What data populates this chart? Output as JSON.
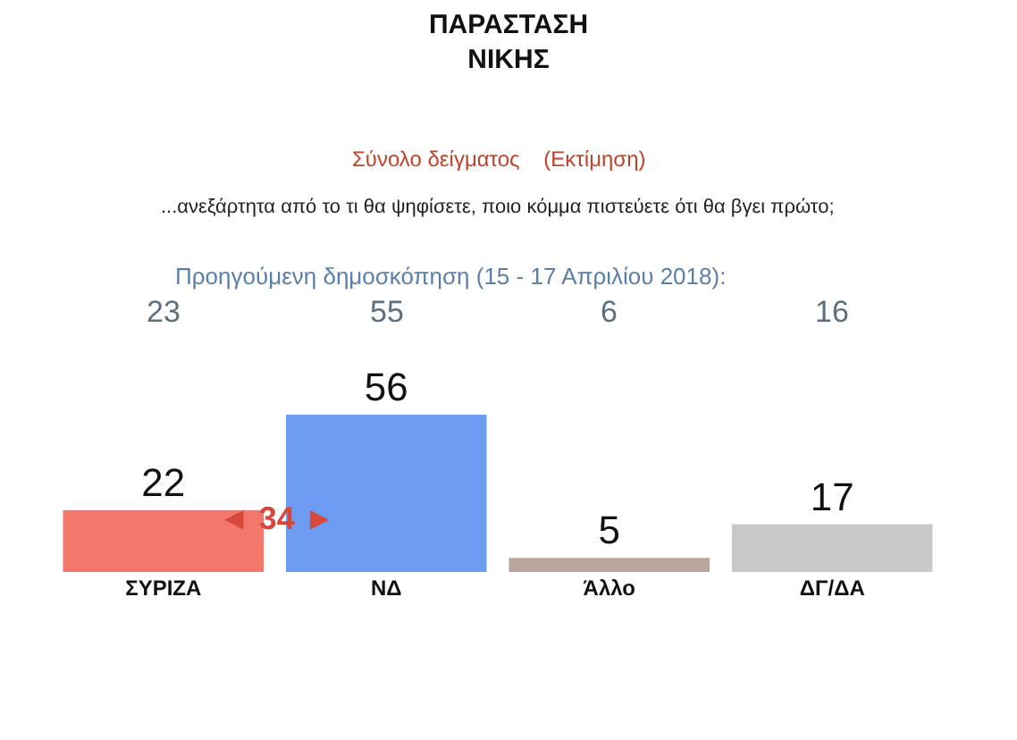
{
  "chart_data": {
    "type": "bar",
    "title": "ΠΑΡΑΣΤΑΣΗ\nΝΙΚΗΣ",
    "subtitle": "Σύνολο δείγματος    (Εκτίμηση)",
    "categories": [
      "ΣΥΡΙΖΑ",
      "ΝΔ",
      "Άλλο",
      "ΔΓ/ΔΑ"
    ],
    "values": [
      22,
      56,
      5,
      17
    ],
    "colors": [
      "#f4776b",
      "#6e9cf2",
      "#b8a59b",
      "#c9c9c9"
    ],
    "data_labels": true,
    "grid": false,
    "legend": false,
    "annotations": [
      "...ανεξάρτητα από το τι θα ψηφίσετε, ποιο κόμμα πιστεύετε ότι θα βγει πρώτο;",
      "Προηγούμενη δημοσκόπηση (15 - 17 Απριλίου 2018):",
      "23",
      "55",
      "6",
      "16",
      "◄ 34 ►"
    ]
  }
}
